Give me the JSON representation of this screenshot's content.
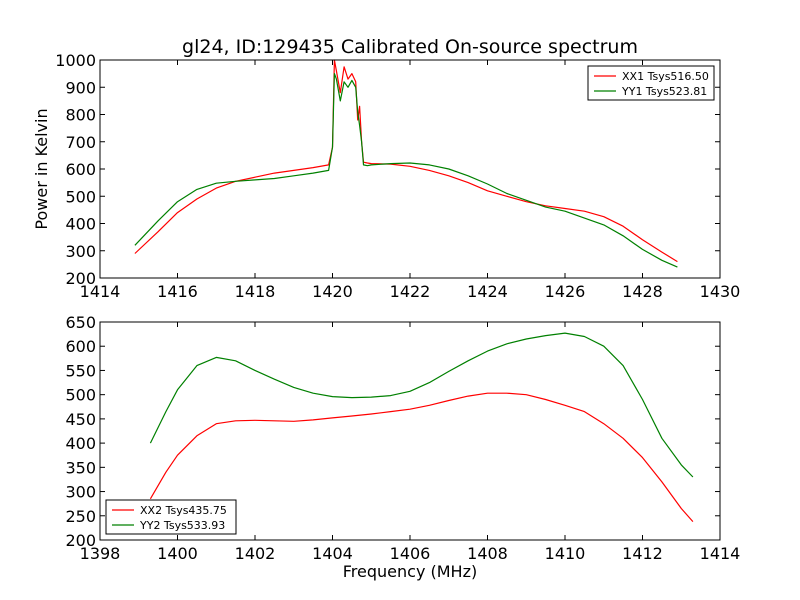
{
  "figure": {
    "title": "gl24, ID:129435 Calibrated On-source spectrum",
    "ylabel": "Power in Kelvin",
    "xlabel": "Frequency (MHz)"
  },
  "chart_data": [
    {
      "type": "line",
      "title": "gl24, ID:129435 Calibrated On-source spectrum",
      "xlabel": "",
      "ylabel": "Power in Kelvin",
      "xlim": [
        1414,
        1430
      ],
      "ylim": [
        200,
        1000
      ],
      "xticks": [
        "1414",
        "1416",
        "1418",
        "1420",
        "1422",
        "1424",
        "1426",
        "1428",
        "1430"
      ],
      "yticks": [
        "200",
        "300",
        "400",
        "500",
        "600",
        "700",
        "800",
        "900",
        "1000"
      ],
      "grid": false,
      "legend": "top-right",
      "colors": {
        "XX1": "#ff0000",
        "YY1": "#008000"
      },
      "series": [
        {
          "name": "XX1 Tsys516.50",
          "x": [
            1414.9,
            1415.5,
            1416,
            1416.5,
            1417,
            1417.5,
            1418,
            1418.5,
            1419,
            1419.5,
            1419.9,
            1420.0,
            1420.05,
            1420.1,
            1420.2,
            1420.3,
            1420.4,
            1420.5,
            1420.6,
            1420.65,
            1420.7,
            1420.75,
            1420.8,
            1420.9,
            1421,
            1421.5,
            1422,
            1422.5,
            1423,
            1423.5,
            1424,
            1424.5,
            1425,
            1425.5,
            1426,
            1426.5,
            1427,
            1427.5,
            1428,
            1428.5,
            1428.9
          ],
          "y": [
            290,
            370,
            440,
            490,
            530,
            555,
            570,
            585,
            595,
            605,
            615,
            680,
            1000,
            960,
            880,
            975,
            930,
            950,
            920,
            780,
            830,
            700,
            625,
            622,
            620,
            618,
            610,
            595,
            575,
            550,
            520,
            500,
            480,
            465,
            455,
            445,
            425,
            390,
            340,
            295,
            260
          ]
        },
        {
          "name": "YY1 Tsys523.81",
          "x": [
            1414.9,
            1415.5,
            1416,
            1416.5,
            1417,
            1417.5,
            1418,
            1418.5,
            1419,
            1419.5,
            1419.9,
            1420.0,
            1420.05,
            1420.1,
            1420.2,
            1420.3,
            1420.4,
            1420.5,
            1420.6,
            1420.65,
            1420.7,
            1420.75,
            1420.8,
            1420.9,
            1421,
            1421.5,
            1422,
            1422.5,
            1423,
            1423.5,
            1424,
            1424.5,
            1425,
            1425.5,
            1426,
            1426.5,
            1427,
            1427.5,
            1428,
            1428.5,
            1428.9
          ],
          "y": [
            320,
            410,
            480,
            525,
            548,
            555,
            560,
            565,
            575,
            585,
            595,
            680,
            950,
            930,
            850,
            920,
            900,
            925,
            900,
            810,
            760,
            700,
            615,
            612,
            615,
            620,
            622,
            615,
            600,
            575,
            545,
            510,
            485,
            460,
            445,
            420,
            395,
            355,
            305,
            265,
            240
          ]
        }
      ]
    },
    {
      "type": "line",
      "title": "",
      "xlabel": "Frequency (MHz)",
      "ylabel": "",
      "xlim": [
        1398,
        1414
      ],
      "ylim": [
        200,
        650
      ],
      "xticks": [
        "1398",
        "1400",
        "1402",
        "1404",
        "1406",
        "1408",
        "1410",
        "1412",
        "1414"
      ],
      "yticks": [
        "200",
        "250",
        "300",
        "350",
        "400",
        "450",
        "500",
        "550",
        "600",
        "650"
      ],
      "grid": false,
      "legend": "bottom-left",
      "colors": {
        "XX2": "#ff0000",
        "YY2": "#008000"
      },
      "series": [
        {
          "name": "XX2 Tsys435.75",
          "x": [
            1399.3,
            1399.7,
            1400,
            1400.5,
            1401,
            1401.5,
            1402,
            1402.5,
            1403,
            1403.5,
            1404,
            1404.5,
            1405,
            1405.5,
            1406,
            1406.5,
            1407,
            1407.5,
            1408,
            1408.5,
            1409,
            1409.5,
            1410,
            1410.5,
            1411,
            1411.5,
            1412,
            1412.5,
            1413,
            1413.3
          ],
          "y": [
            285,
            340,
            375,
            415,
            440,
            446,
            447,
            446,
            445,
            448,
            452,
            456,
            460,
            465,
            470,
            478,
            488,
            497,
            503,
            503,
            500,
            490,
            478,
            465,
            440,
            410,
            370,
            320,
            265,
            238
          ]
        },
        {
          "name": "YY2 Tsys533.93",
          "x": [
            1399.3,
            1399.7,
            1400,
            1400.5,
            1401,
            1401.5,
            1402,
            1402.5,
            1403,
            1403.5,
            1404,
            1404.5,
            1405,
            1405.5,
            1406,
            1406.5,
            1407,
            1407.5,
            1408,
            1408.5,
            1409,
            1409.5,
            1410,
            1410.5,
            1411,
            1411.5,
            1412,
            1412.5,
            1413,
            1413.3
          ],
          "y": [
            400,
            465,
            510,
            560,
            577,
            570,
            550,
            532,
            515,
            503,
            496,
            494,
            495,
            498,
            507,
            525,
            548,
            570,
            590,
            605,
            615,
            622,
            627,
            620,
            600,
            560,
            490,
            410,
            355,
            330
          ]
        }
      ]
    }
  ]
}
